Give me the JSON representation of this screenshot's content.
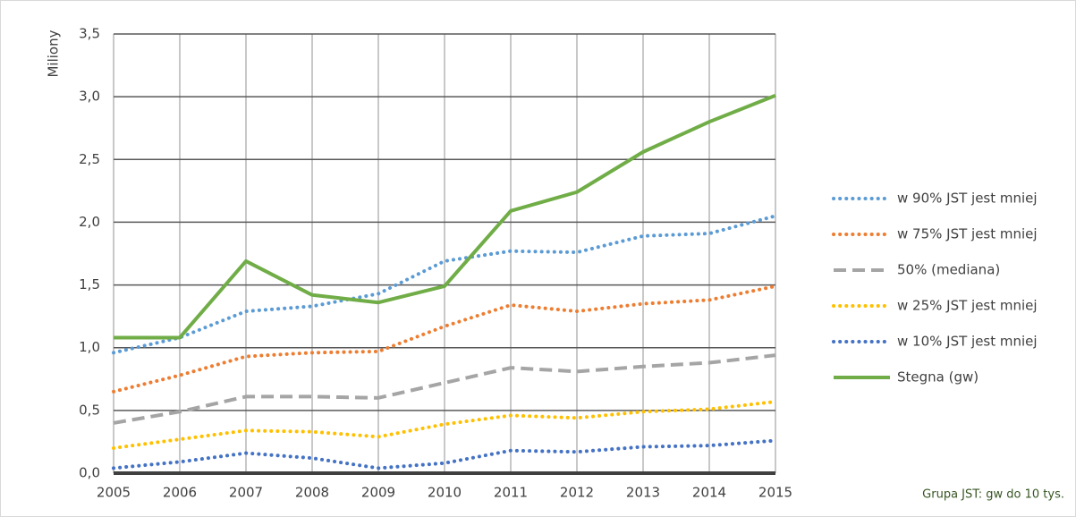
{
  "chart_data": {
    "type": "line",
    "y_label": "Miliony",
    "annotation": "Grupa JST: gw do 10 tys.",
    "x": [
      2005,
      2006,
      2007,
      2008,
      2009,
      2010,
      2011,
      2012,
      2013,
      2014,
      2015
    ],
    "xlim": [
      2005,
      2015
    ],
    "xticks": [
      2005,
      2006,
      2007,
      2008,
      2009,
      2010,
      2011,
      2012,
      2013,
      2014,
      2015
    ],
    "ylim": [
      0,
      3.5
    ],
    "yticks": [
      {
        "value": 0,
        "label": "0,0"
      },
      {
        "value": 0.5,
        "label": "0,5"
      },
      {
        "value": 1,
        "label": "1,0"
      },
      {
        "value": 1.5,
        "label": "1,5"
      },
      {
        "value": 2,
        "label": "2,0"
      },
      {
        "value": 2.5,
        "label": "2,5"
      },
      {
        "value": 3,
        "label": "3,0"
      },
      {
        "value": 3.5,
        "label": "3,5"
      }
    ],
    "grid": true,
    "legend": "right",
    "series": [
      {
        "name": "w 90% JST jest mniej",
        "color": "#5b9bd5",
        "dash": "dot",
        "values": [
          0.96,
          1.08,
          1.29,
          1.33,
          1.43,
          1.69,
          1.77,
          1.76,
          1.89,
          1.91,
          2.05
        ]
      },
      {
        "name": "w 75% JST jest mniej",
        "color": "#ed7d31",
        "dash": "dot",
        "values": [
          0.65,
          0.78,
          0.93,
          0.96,
          0.97,
          1.17,
          1.34,
          1.29,
          1.35,
          1.38,
          1.49
        ]
      },
      {
        "name": "50% (mediana)",
        "color": "#a5a5a5",
        "dash": "dash",
        "values": [
          0.4,
          0.49,
          0.61,
          0.61,
          0.6,
          0.72,
          0.84,
          0.81,
          0.85,
          0.88,
          0.94
        ]
      },
      {
        "name": "w 25% JST jest mniej",
        "color": "#ffc000",
        "dash": "dot",
        "values": [
          0.2,
          0.27,
          0.34,
          0.33,
          0.29,
          0.39,
          0.46,
          0.44,
          0.49,
          0.51,
          0.57
        ]
      },
      {
        "name": "w 10% JST jest mniej",
        "color": "#4472c4",
        "dash": "dot",
        "values": [
          0.04,
          0.09,
          0.16,
          0.12,
          0.04,
          0.08,
          0.18,
          0.17,
          0.21,
          0.22,
          0.26
        ]
      },
      {
        "name": "Stegna (gw)",
        "color": "#70ad47",
        "dash": "solid",
        "values": [
          1.08,
          1.08,
          1.69,
          1.42,
          1.36,
          1.49,
          2.09,
          2.24,
          2.56,
          2.8,
          3.01
        ]
      }
    ]
  }
}
